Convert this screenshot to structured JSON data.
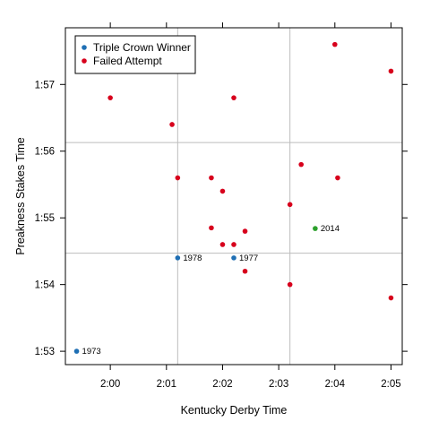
{
  "chart_data": {
    "type": "scatter",
    "title": "",
    "xlabel": "Kentucky Derby Time",
    "ylabel": "Preakness Stakes Time",
    "x_unit": "seconds",
    "y_unit": "seconds",
    "xlim": [
      119.2,
      125.2
    ],
    "ylim": [
      112.8,
      117.85
    ],
    "x_ticks": [
      {
        "value": 120,
        "label": "2:00"
      },
      {
        "value": 121,
        "label": "2:01"
      },
      {
        "value": 122,
        "label": "2:02"
      },
      {
        "value": 123,
        "label": "2:03"
      },
      {
        "value": 124,
        "label": "2:04"
      },
      {
        "value": 125,
        "label": "2:05"
      }
    ],
    "y_ticks": [
      {
        "value": 113,
        "label": "1:53"
      },
      {
        "value": 114,
        "label": "1:54"
      },
      {
        "value": 115,
        "label": "1:55"
      },
      {
        "value": 116,
        "label": "1:56"
      },
      {
        "value": 117,
        "label": "1:57"
      }
    ],
    "reference_lines": {
      "vertical": [
        121.2,
        123.2
      ],
      "horizontal": [
        114.47,
        116.13
      ]
    },
    "legend": {
      "position": "top-left",
      "entries": [
        {
          "label": "Triple Crown Winner",
          "color": "#1f6fb4"
        },
        {
          "label": "Failed Attempt",
          "color": "#d7001c"
        }
      ]
    },
    "series": [
      {
        "name": "Triple Crown Winner",
        "color": "#1f6fb4",
        "points": [
          {
            "x": 119.4,
            "y": 113.0,
            "label": "1973"
          },
          {
            "x": 121.2,
            "y": 114.4,
            "label": "1978"
          },
          {
            "x": 122.2,
            "y": 114.4,
            "label": "1977"
          }
        ]
      },
      {
        "name": "Failed Attempt",
        "color": "#d7001c",
        "points": [
          {
            "x": 120.0,
            "y": 116.8
          },
          {
            "x": 121.1,
            "y": 116.4
          },
          {
            "x": 122.2,
            "y": 116.8
          },
          {
            "x": 124.0,
            "y": 117.6
          },
          {
            "x": 125.0,
            "y": 117.2
          },
          {
            "x": 121.2,
            "y": 115.6
          },
          {
            "x": 121.8,
            "y": 115.6
          },
          {
            "x": 122.0,
            "y": 115.4
          },
          {
            "x": 123.4,
            "y": 115.8
          },
          {
            "x": 124.05,
            "y": 115.6
          },
          {
            "x": 123.2,
            "y": 115.2
          },
          {
            "x": 121.8,
            "y": 114.85
          },
          {
            "x": 122.4,
            "y": 114.8
          },
          {
            "x": 122.0,
            "y": 114.6
          },
          {
            "x": 122.2,
            "y": 114.6
          },
          {
            "x": 122.4,
            "y": 114.2
          },
          {
            "x": 123.2,
            "y": 114.0
          },
          {
            "x": 125.0,
            "y": 113.8
          }
        ]
      },
      {
        "name": "",
        "color": "#2ca02c",
        "points": [
          {
            "x": 123.65,
            "y": 114.84,
            "label": "2014"
          }
        ]
      }
    ],
    "grid": false
  }
}
